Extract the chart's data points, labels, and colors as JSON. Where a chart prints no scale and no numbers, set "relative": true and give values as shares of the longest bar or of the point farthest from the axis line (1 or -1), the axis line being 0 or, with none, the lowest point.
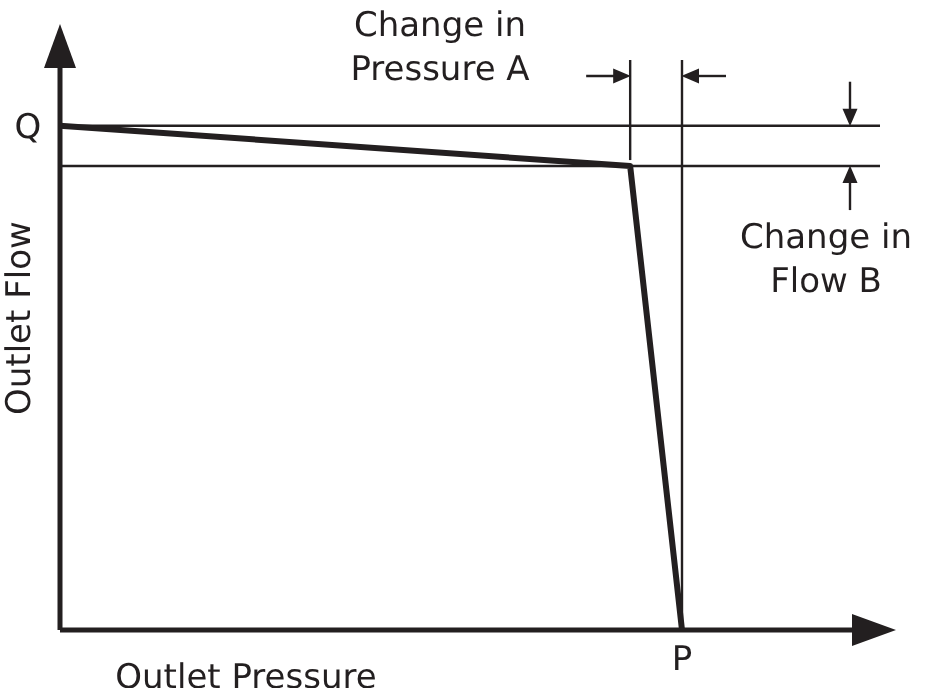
{
  "chart_data": {
    "type": "line",
    "xlabel": "Outlet Pressure",
    "ylabel": "Outlet Flow",
    "relative": true,
    "categories": [
      null,
      null,
      null,
      null,
      null,
      null,
      null,
      null,
      null,
      null,
      null,
      null,
      null
    ],
    "series": [
      {
        "color": "#231f20",
        "values": [
          1,
          null,
          null,
          null,
          null,
          null,
          null,
          null,
          null,
          null,
          null,
          0.92,
          0
        ]
      }
    ],
    "line_style": "solid",
    "ref_lines": [
      {
        "axis": "y",
        "value": 1,
        "color": "#231f20"
      },
      {
        "axis": "y",
        "value": 0.92,
        "color": "#231f20"
      }
    ],
    "annotations": [
      "Change in Pressure A",
      "Change in Flow B",
      "Q",
      "P"
    ]
  }
}
